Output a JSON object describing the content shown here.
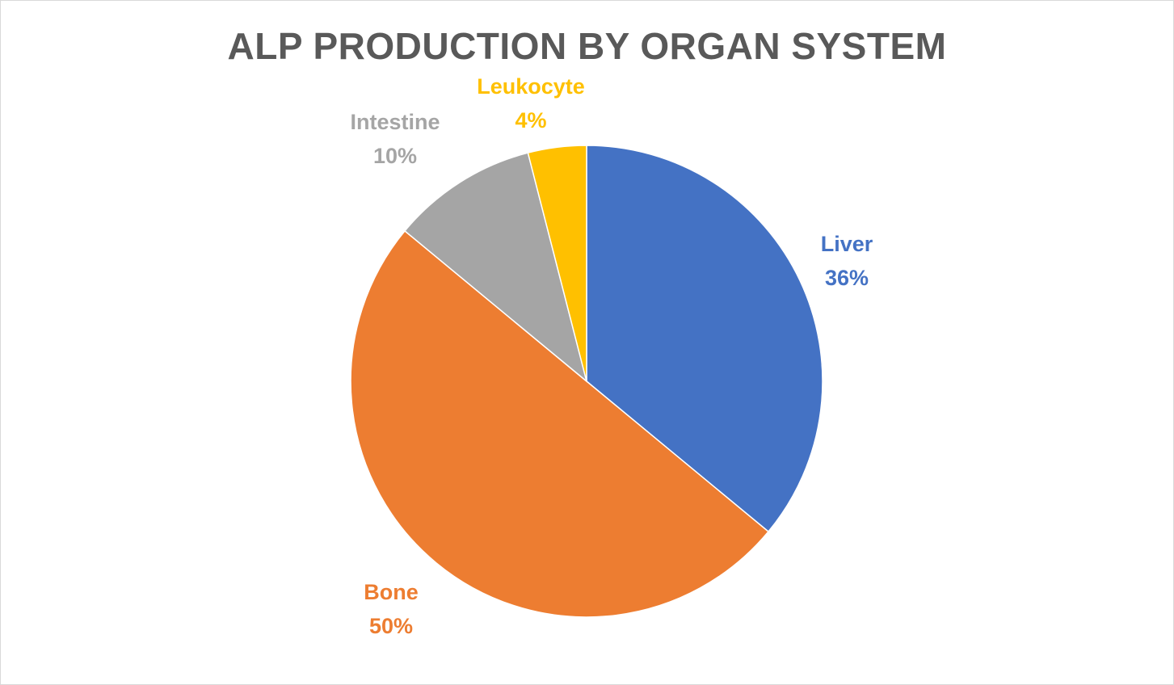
{
  "chart_data": {
    "type": "pie",
    "title": "ALP PRODUCTION BY ORGAN SYSTEM",
    "start_angle_deg": 0,
    "direction": "clockwise",
    "slices": [
      {
        "name": "Liver",
        "value": 36,
        "label": "36%",
        "color": "#4472C4"
      },
      {
        "name": "Bone",
        "value": 50,
        "label": "50%",
        "color": "#ED7D31"
      },
      {
        "name": "Intestine",
        "value": 10,
        "label": "10%",
        "color": "#A5A5A5"
      },
      {
        "name": "Leukocyte",
        "value": 4,
        "label": "4%",
        "color": "#FFC000"
      }
    ],
    "legend": "none",
    "grid": false
  }
}
